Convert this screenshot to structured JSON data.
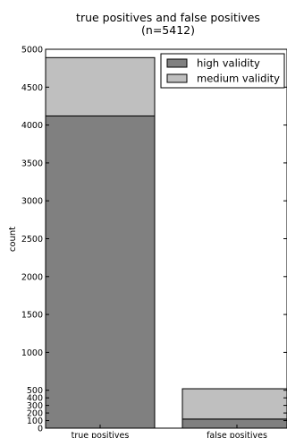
{
  "chart_data": {
    "type": "bar",
    "stacked": true,
    "title": "true positives and false positives",
    "subtitle": "(n=5412)",
    "xlabel": "",
    "ylabel": "count",
    "categories": [
      "true positives",
      "false positives"
    ],
    "series": [
      {
        "name": "high validity",
        "values": [
          4120,
          120
        ],
        "color": "#808080"
      },
      {
        "name": "medium validity",
        "values": [
          770,
          400
        ],
        "color": "#bfbfbf"
      }
    ],
    "ylim": [
      0,
      5000
    ],
    "yticks": [
      0,
      100,
      200,
      300,
      400,
      500,
      1000,
      1500,
      2000,
      2500,
      3000,
      3500,
      4000,
      4500,
      5000
    ],
    "grid": false,
    "legend_position": "top-right"
  }
}
